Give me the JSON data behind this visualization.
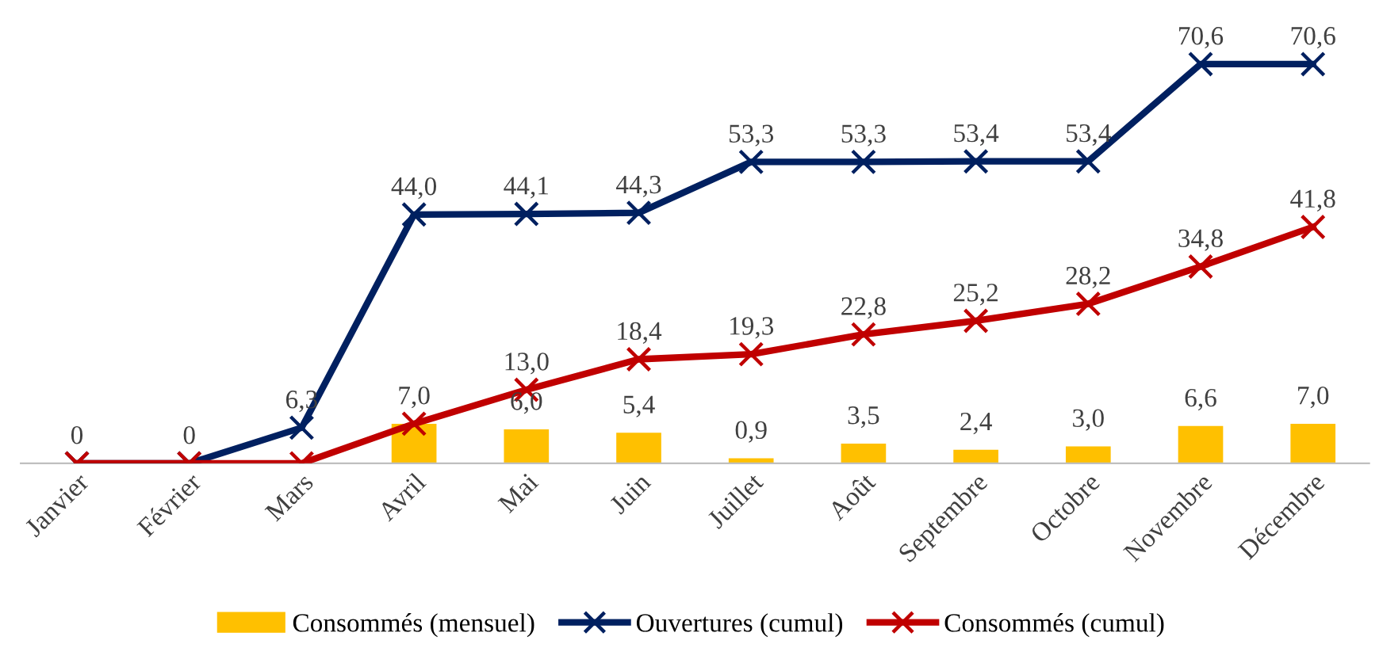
{
  "chart_data": {
    "type": "line",
    "categories": [
      "Janvier",
      "Février",
      "Mars",
      "Avril",
      "Mai",
      "Juin",
      "Juillet",
      "Août",
      "Septembre",
      "Octobre",
      "Novembre",
      "Décembre"
    ],
    "series": [
      {
        "name": "Consommés (mensuel)",
        "type": "bar",
        "color": "#ffc000",
        "values": [
          null,
          null,
          null,
          7.0,
          6.0,
          5.4,
          0.9,
          3.5,
          2.4,
          3.0,
          6.6,
          7.0
        ],
        "value_labels": [
          null,
          null,
          null,
          "7,0",
          "6,0",
          "5,4",
          "0,9",
          "3,5",
          "2,4",
          "3,0",
          "6,6",
          "7,0"
        ]
      },
      {
        "name": "Ouvertures (cumul)",
        "color": "#002060",
        "values": [
          0,
          0,
          6.3,
          44.0,
          44.1,
          44.3,
          53.3,
          53.3,
          53.4,
          53.4,
          70.6,
          70.6
        ],
        "value_labels": [
          "0",
          "0",
          "6,3",
          "44,0",
          "44,1",
          "44,3",
          "53,3",
          "53,3",
          "53,4",
          "53,4",
          "70,6",
          "70,6"
        ]
      },
      {
        "name": "Consommés (cumul)",
        "color": "#c00000",
        "values": [
          0,
          0,
          0,
          7.0,
          13.0,
          18.4,
          19.3,
          22.8,
          25.2,
          28.2,
          34.8,
          41.8
        ],
        "value_labels": [
          null,
          null,
          null,
          null,
          "13,0",
          "18,4",
          "19,3",
          "22,8",
          "25,2",
          "28,2",
          "34,8",
          "41,8"
        ]
      }
    ],
    "marker": "cross",
    "line_style": "solid",
    "legend": "bottom",
    "grid": false,
    "tick_labels": "x"
  }
}
